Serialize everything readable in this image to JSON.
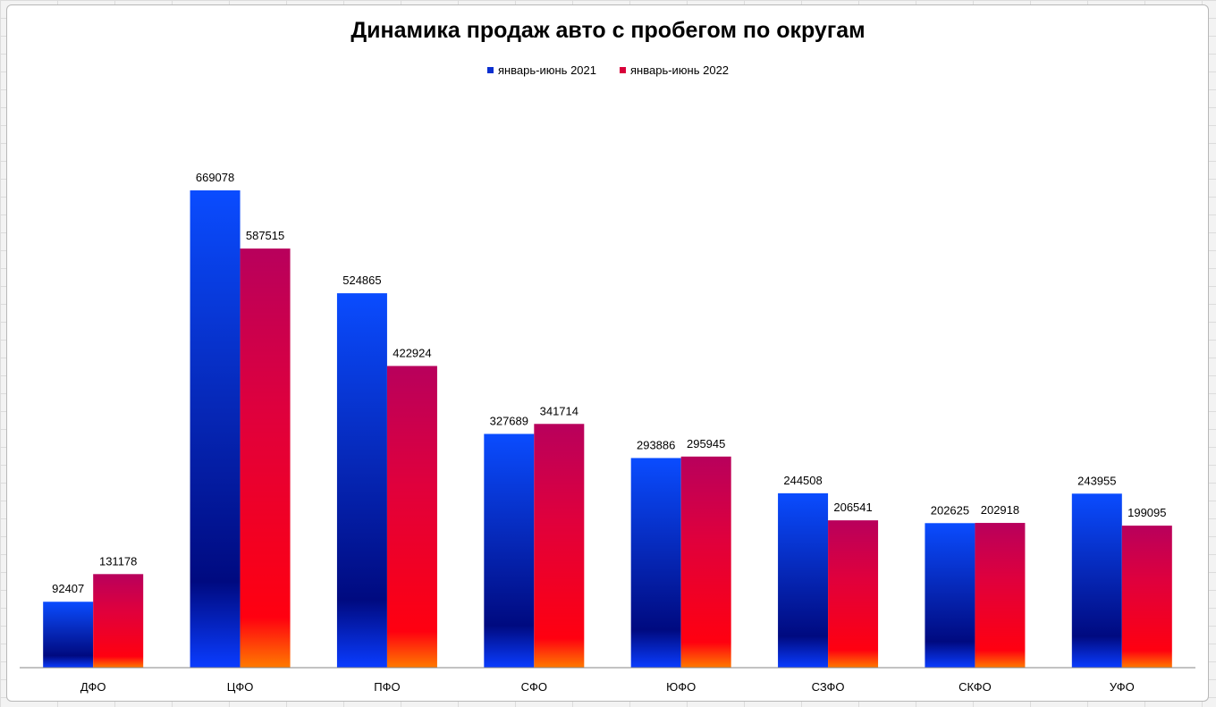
{
  "chart_data": {
    "type": "bar",
    "title": "Динамика продаж авто с пробегом по округам",
    "categories": [
      "ДФО",
      "ЦФО",
      "ПФО",
      "СФО",
      "ЮФО",
      "СЗФО",
      "СКФО",
      "УФО"
    ],
    "series": [
      {
        "name": "январь-июнь 2021",
        "color": "#0a3cff",
        "values": [
          92407,
          669078,
          524865,
          327689,
          293886,
          244508,
          202625,
          243955
        ]
      },
      {
        "name": "январь-июнь 2022",
        "color": "#e8003a",
        "values": [
          131178,
          587515,
          422924,
          341714,
          295945,
          206541,
          202918,
          199095
        ]
      }
    ],
    "xlabel": "",
    "ylabel": "",
    "ylim": [
      0,
      700000
    ],
    "grid": false,
    "legend_position": "top-center",
    "data_labels": true
  }
}
